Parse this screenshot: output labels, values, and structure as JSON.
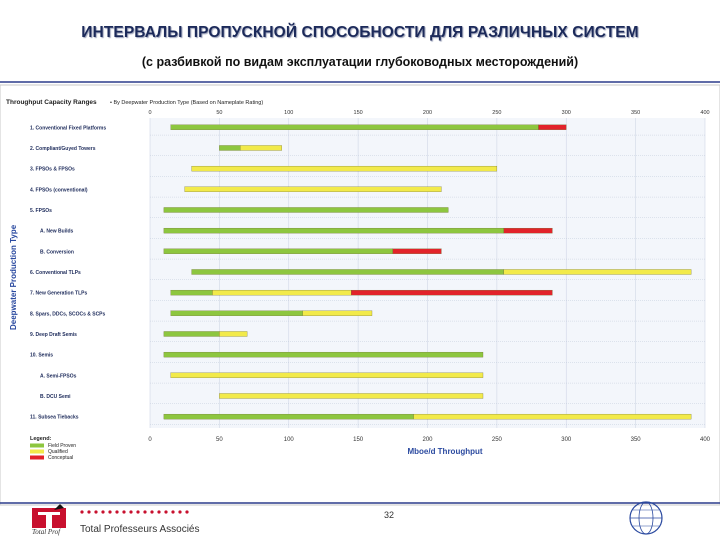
{
  "slide": {
    "title": "ИНТЕРВАЛЫ ПРОПУСКНОЙ СПОСОБНОСТИ ДЛЯ РАЗЛИЧНЫХ СИСТЕМ",
    "subtitle": "(с разбивкой по видам эксплуатации глубоководных месторождений)",
    "page_number": "32",
    "company": "Total Professeurs Associés",
    "logo_caption": "Total Prof"
  },
  "colors": {
    "green": "#8dc63f",
    "yellow": "#f2ea4a",
    "red": "#e2232a",
    "title": "#1c2a5a"
  },
  "chart_data": {
    "type": "bar",
    "orientation": "horizontal-range",
    "title": "Throughput Capacity Ranges",
    "subtitle": "• By Deepwater Production Type (Based on Nameplate Rating)",
    "ylabel": "Deepwater Production Type",
    "xlabel": "Mboe/d Throughput",
    "xlim": [
      0,
      400
    ],
    "x_ticks_top": [
      "0",
      "50",
      "100",
      "150",
      "200",
      "250",
      "300",
      "350",
      "400"
    ],
    "x_ticks_bottom": [
      "0",
      "50",
      "100",
      "150",
      "200",
      "250",
      "300",
      "350",
      "400"
    ],
    "grid": true,
    "legend": {
      "title": "Legend:",
      "placement": "bottom-left",
      "items": [
        {
          "label": "Field Proven",
          "color": "#8dc63f"
        },
        {
          "label": "Qualified",
          "color": "#f2ea4a"
        },
        {
          "label": "Conceptual",
          "color": "#e2232a"
        }
      ]
    },
    "categories": [
      "1. Conventional Fixed Platforms",
      "2. Compliant/Guyed Towers",
      "3. FPSOs & FPSOs",
      "4. FPSOs (conventional)",
      "5. FPSOs",
      "A. New Builds",
      "B. Conversion",
      "6. Conventional TLPs",
      "7. New Generation TLPs",
      "8. Spars, DDCs, SCOCs & SCPs",
      "9. Deep Draft Semis",
      "10. Semis",
      "A. Semi-FPSOs",
      "B. DCU Semi",
      "11. Subsea Tiebacks"
    ],
    "series": [
      {
        "name": "Field Proven",
        "color": "#8dc63f",
        "ranges": [
          [
            15,
            280
          ],
          [
            50,
            65
          ],
          [
            0,
            0
          ],
          [
            0,
            0
          ],
          [
            10,
            215
          ],
          [
            10,
            255
          ],
          [
            10,
            175
          ],
          [
            30,
            255
          ],
          [
            15,
            45
          ],
          [
            15,
            110
          ],
          [
            10,
            50
          ],
          [
            10,
            240
          ],
          [
            0,
            0
          ],
          [
            0,
            0
          ],
          [
            10,
            190
          ]
        ]
      },
      {
        "name": "Qualified",
        "color": "#f2ea4a",
        "ranges": [
          [
            0,
            0
          ],
          [
            65,
            95
          ],
          [
            30,
            250
          ],
          [
            25,
            210
          ],
          [
            0,
            0
          ],
          [
            0,
            0
          ],
          [
            0,
            0
          ],
          [
            255,
            390
          ],
          [
            45,
            145
          ],
          [
            110,
            160
          ],
          [
            50,
            70
          ],
          [
            0,
            0
          ],
          [
            15,
            240
          ],
          [
            50,
            240
          ],
          [
            190,
            390
          ]
        ]
      },
      {
        "name": "Conceptual",
        "color": "#e2232a",
        "ranges": [
          [
            280,
            300
          ],
          [
            0,
            0
          ],
          [
            0,
            0
          ],
          [
            0,
            0
          ],
          [
            0,
            0
          ],
          [
            255,
            290
          ],
          [
            175,
            210
          ],
          [
            0,
            0
          ],
          [
            145,
            290
          ],
          [
            0,
            0
          ],
          [
            0,
            0
          ],
          [
            0,
            0
          ],
          [
            0,
            0
          ],
          [
            0,
            0
          ],
          [
            0,
            0
          ]
        ]
      }
    ]
  }
}
